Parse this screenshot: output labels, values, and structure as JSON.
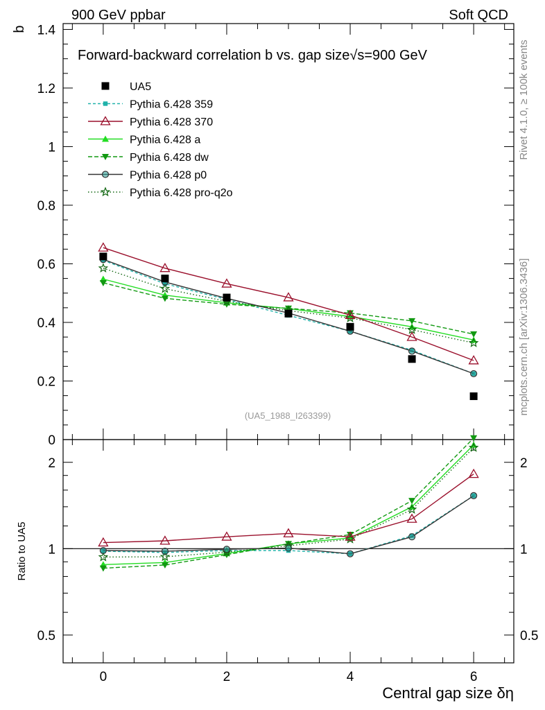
{
  "header": {
    "left": "900 GeV ppbar",
    "right": "Soft QCD"
  },
  "side_labels": {
    "rivet": "Rivet 4.1.0, ≥ 100k events",
    "mcplots": "mcplots.cern.ch [arXiv:1306.3436]"
  },
  "chart_data": [
    {
      "type": "line",
      "panel": "main",
      "title": "Forward-backward correlation b  vs. gap size",
      "title_suffix": "√s=900 GeV",
      "ylabel": "b",
      "xlim": [
        -0.65,
        6.65
      ],
      "ylim": [
        0,
        1.42
      ],
      "yticks": [
        0,
        0.2,
        0.4,
        0.6,
        0.8,
        1,
        1.2,
        1.4
      ],
      "ytick_labels": [
        "0",
        "0.2",
        "0.4",
        "0.6",
        "0.8",
        "1",
        "1.2",
        "1.4"
      ],
      "watermark": "(UA5_1988_I263399)",
      "x": [
        0,
        1,
        2,
        3,
        4,
        5,
        6
      ],
      "series": [
        {
          "name": "UA5",
          "marker": "square",
          "color": "#000000",
          "values": [
            0.625,
            0.55,
            0.485,
            0.43,
            0.385,
            0.275,
            0.148
          ]
        },
        {
          "name": "Pythia 6.428 359",
          "marker": "small-square",
          "color": "#20b2aa",
          "dash": "4,3",
          "values": [
            0.612,
            0.532,
            0.478,
            0.424,
            0.37,
            0.305,
            0.225
          ]
        },
        {
          "name": "Pythia 6.428 370",
          "marker": "open-triangle",
          "color": "#9a0f2b",
          "dash": "",
          "values": [
            0.655,
            0.585,
            0.532,
            0.485,
            0.425,
            0.35,
            0.27
          ]
        },
        {
          "name": "Pythia 6.428 a",
          "marker": "triangle-up",
          "color": "#22dd22",
          "dash": "",
          "values": [
            0.548,
            0.493,
            0.467,
            0.447,
            0.42,
            0.385,
            0.34
          ]
        },
        {
          "name": "Pythia 6.428 dw",
          "marker": "triangle-down",
          "color": "#119911",
          "dash": "6,3",
          "values": [
            0.535,
            0.482,
            0.462,
            0.448,
            0.432,
            0.405,
            0.36
          ]
        },
        {
          "name": "Pythia 6.428 p0",
          "marker": "open-circle",
          "color": "#333333",
          "dash": "",
          "values": [
            0.615,
            0.538,
            0.482,
            0.432,
            0.37,
            0.302,
            0.225
          ]
        },
        {
          "name": "Pythia 6.428 pro-q2o",
          "marker": "open-star",
          "color": "#116611",
          "dash": "1.5,3",
          "values": [
            0.585,
            0.515,
            0.472,
            0.44,
            0.415,
            0.375,
            0.33
          ]
        }
      ]
    },
    {
      "type": "line",
      "panel": "ratio",
      "ylabel": "Ratio to UA5",
      "xlabel": "Central gap size δη",
      "xlim": [
        -0.65,
        6.65
      ],
      "ylim": [
        0.4,
        2.4
      ],
      "yscale": "log",
      "xticks": [
        0,
        2,
        4,
        6
      ],
      "xtick_labels": [
        "0",
        "2",
        "4",
        "6"
      ],
      "yticks": [
        0.5,
        1,
        2
      ],
      "ytick_labels": [
        "0.5",
        "1",
        "2"
      ],
      "reference": 1,
      "x": [
        0,
        1,
        2,
        3,
        4,
        5,
        6
      ],
      "series": [
        {
          "name": "Pythia 6.428 359",
          "values": [
            0.98,
            0.97,
            0.985,
            0.985,
            0.96,
            1.11,
            1.53
          ]
        },
        {
          "name": "Pythia 6.428 370",
          "values": [
            1.05,
            1.065,
            1.1,
            1.13,
            1.1,
            1.27,
            1.82
          ]
        },
        {
          "name": "Pythia 6.428 a",
          "values": [
            0.88,
            0.895,
            0.962,
            1.04,
            1.09,
            1.4,
            2.3
          ]
        },
        {
          "name": "Pythia 6.428 dw",
          "values": [
            0.855,
            0.877,
            0.953,
            1.04,
            1.12,
            1.47,
            2.43
          ]
        },
        {
          "name": "Pythia 6.428 p0",
          "values": [
            0.985,
            0.98,
            0.995,
            1.005,
            0.96,
            1.1,
            1.53
          ]
        },
        {
          "name": "Pythia 6.428 pro-q2o",
          "values": [
            0.935,
            0.937,
            0.973,
            1.023,
            1.08,
            1.37,
            2.25
          ]
        }
      ]
    }
  ]
}
